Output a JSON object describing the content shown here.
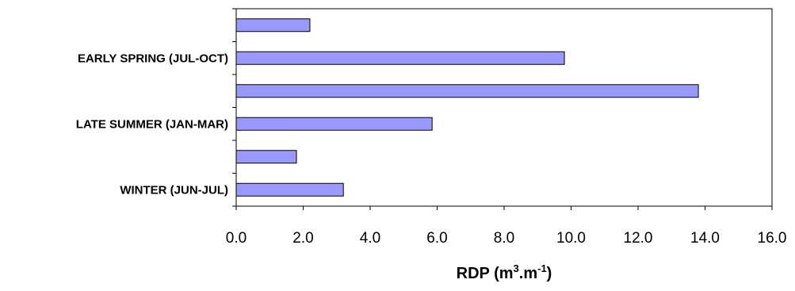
{
  "chart_data": {
    "type": "bar",
    "orientation": "horizontal",
    "title": "",
    "xlabel": {
      "base": "RDP (m",
      "sup1": "3",
      "mid": ".m",
      "sup2": "-1",
      "end": ")"
    },
    "ylabel": "",
    "categories": [
      "",
      "EARLY SPRING (JUL-OCT)",
      "",
      "LATE SUMMER (JAN-MAR)",
      "",
      "WINTER (JUN-JUL)"
    ],
    "values": [
      2.2,
      9.8,
      13.8,
      5.85,
      1.8,
      3.2
    ],
    "xlim": [
      0,
      16
    ],
    "xticks": [
      "0.0",
      "2.0",
      "4.0",
      "6.0",
      "8.0",
      "10.0",
      "12.0",
      "14.0",
      "16.0"
    ],
    "grid": false,
    "legend": "none",
    "bar_color": "#9999ff",
    "bar_edge_color": "#000000"
  }
}
